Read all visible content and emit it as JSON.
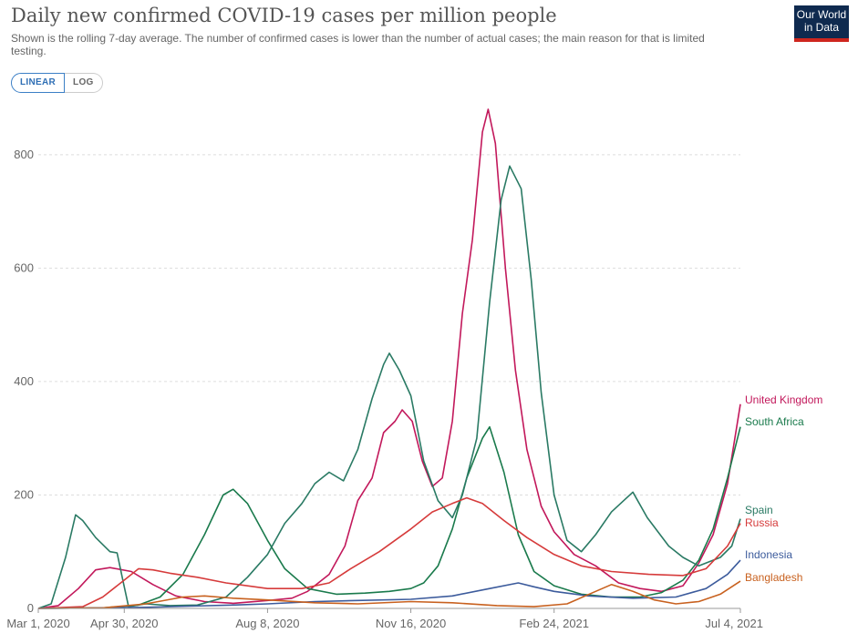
{
  "title": "Daily new confirmed COVID-19 cases per million people",
  "subtitle": "Shown is the rolling 7-day average. The number of confirmed cases is lower than the number of actual cases; the main reason for that is limited testing.",
  "logo": {
    "line1": "Our World",
    "line2": "in Data"
  },
  "scale_toggle": {
    "linear": "LINEAR",
    "log": "LOG",
    "selected": "LINEAR"
  },
  "chart_data": {
    "type": "line",
    "title": "Daily new confirmed COVID-19 cases per million people",
    "subtitle": "Shown is the rolling 7-day average. The number of confirmed cases is lower than the number of actual cases; the main reason for that is limited testing.",
    "x_range": [
      "2020-03-01",
      "2021-07-04"
    ],
    "ylim": [
      0,
      880
    ],
    "grid": "horizontal dashed",
    "legend": "right-end labels",
    "x_ticks": [
      {
        "date": "2020-03-01",
        "label": "Mar 1, 2020"
      },
      {
        "date": "2020-04-30",
        "label": "Apr 30, 2020"
      },
      {
        "date": "2020-08-08",
        "label": "Aug 8, 2020"
      },
      {
        "date": "2020-11-16",
        "label": "Nov 16, 2020"
      },
      {
        "date": "2021-02-24",
        "label": "Feb 24, 2021"
      },
      {
        "date": "2021-07-04",
        "label": "Jul 4, 2021"
      }
    ],
    "y_ticks": [
      {
        "value": 0,
        "label": "0"
      },
      {
        "value": 200,
        "label": "200"
      },
      {
        "value": 400,
        "label": "400"
      },
      {
        "value": 600,
        "label": "600"
      },
      {
        "value": 800,
        "label": "800"
      }
    ],
    "series": [
      {
        "name": "United Kingdom",
        "color": "#c2185b",
        "points": [
          [
            "2020-03-01",
            0
          ],
          [
            "2020-03-15",
            5
          ],
          [
            "2020-03-29",
            35
          ],
          [
            "2020-04-10",
            68
          ],
          [
            "2020-04-20",
            72
          ],
          [
            "2020-05-05",
            65
          ],
          [
            "2020-05-20",
            42
          ],
          [
            "2020-06-05",
            22
          ],
          [
            "2020-06-25",
            12
          ],
          [
            "2020-07-15",
            9
          ],
          [
            "2020-08-08",
            14
          ],
          [
            "2020-08-25",
            18
          ],
          [
            "2020-09-05",
            30
          ],
          [
            "2020-09-20",
            60
          ],
          [
            "2020-10-01",
            110
          ],
          [
            "2020-10-10",
            190
          ],
          [
            "2020-10-20",
            230
          ],
          [
            "2020-10-28",
            310
          ],
          [
            "2020-11-05",
            330
          ],
          [
            "2020-11-10",
            350
          ],
          [
            "2020-11-17",
            330
          ],
          [
            "2020-11-24",
            260
          ],
          [
            "2020-12-01",
            215
          ],
          [
            "2020-12-08",
            230
          ],
          [
            "2020-12-15",
            330
          ],
          [
            "2020-12-22",
            520
          ],
          [
            "2020-12-29",
            650
          ],
          [
            "2021-01-05",
            840
          ],
          [
            "2021-01-09",
            880
          ],
          [
            "2021-01-14",
            820
          ],
          [
            "2021-01-21",
            600
          ],
          [
            "2021-01-28",
            420
          ],
          [
            "2021-02-05",
            280
          ],
          [
            "2021-02-15",
            180
          ],
          [
            "2021-02-24",
            135
          ],
          [
            "2021-03-10",
            95
          ],
          [
            "2021-03-25",
            75
          ],
          [
            "2021-04-10",
            45
          ],
          [
            "2021-04-25",
            35
          ],
          [
            "2021-05-10",
            30
          ],
          [
            "2021-05-25",
            40
          ],
          [
            "2021-06-05",
            80
          ],
          [
            "2021-06-15",
            130
          ],
          [
            "2021-06-25",
            220
          ],
          [
            "2021-07-04",
            360
          ]
        ]
      },
      {
        "name": "South Africa",
        "color": "#1a7a4c",
        "points": [
          [
            "2020-03-01",
            0
          ],
          [
            "2020-04-15",
            1
          ],
          [
            "2020-05-10",
            6
          ],
          [
            "2020-05-25",
            20
          ],
          [
            "2020-06-10",
            60
          ],
          [
            "2020-06-25",
            130
          ],
          [
            "2020-07-08",
            200
          ],
          [
            "2020-07-15",
            210
          ],
          [
            "2020-07-25",
            185
          ],
          [
            "2020-08-08",
            120
          ],
          [
            "2020-08-20",
            70
          ],
          [
            "2020-09-05",
            35
          ],
          [
            "2020-09-25",
            25
          ],
          [
            "2020-10-15",
            27
          ],
          [
            "2020-11-01",
            30
          ],
          [
            "2020-11-16",
            35
          ],
          [
            "2020-11-25",
            45
          ],
          [
            "2020-12-05",
            75
          ],
          [
            "2020-12-15",
            140
          ],
          [
            "2020-12-25",
            230
          ],
          [
            "2021-01-05",
            300
          ],
          [
            "2021-01-10",
            320
          ],
          [
            "2021-01-20",
            240
          ],
          [
            "2021-01-30",
            130
          ],
          [
            "2021-02-10",
            65
          ],
          [
            "2021-02-24",
            40
          ],
          [
            "2021-03-15",
            25
          ],
          [
            "2021-04-05",
            20
          ],
          [
            "2021-04-25",
            20
          ],
          [
            "2021-05-10",
            28
          ],
          [
            "2021-05-25",
            50
          ],
          [
            "2021-06-05",
            85
          ],
          [
            "2021-06-15",
            140
          ],
          [
            "2021-06-25",
            230
          ],
          [
            "2021-07-04",
            320
          ]
        ]
      },
      {
        "name": "Spain",
        "color": "#2a7a64",
        "points": [
          [
            "2020-03-01",
            0
          ],
          [
            "2020-03-10",
            8
          ],
          [
            "2020-03-20",
            90
          ],
          [
            "2020-03-27",
            165
          ],
          [
            "2020-04-01",
            155
          ],
          [
            "2020-04-10",
            125
          ],
          [
            "2020-04-20",
            100
          ],
          [
            "2020-04-25",
            98
          ],
          [
            "2020-04-29",
            50
          ],
          [
            "2020-05-03",
            3
          ],
          [
            "2020-05-15",
            8
          ],
          [
            "2020-06-01",
            5
          ],
          [
            "2020-06-20",
            6
          ],
          [
            "2020-07-10",
            20
          ],
          [
            "2020-07-25",
            55
          ],
          [
            "2020-08-08",
            95
          ],
          [
            "2020-08-20",
            150
          ],
          [
            "2020-09-01",
            185
          ],
          [
            "2020-09-10",
            220
          ],
          [
            "2020-09-20",
            240
          ],
          [
            "2020-09-30",
            225
          ],
          [
            "2020-10-10",
            280
          ],
          [
            "2020-10-20",
            370
          ],
          [
            "2020-10-28",
            430
          ],
          [
            "2020-11-01",
            450
          ],
          [
            "2020-11-08",
            420
          ],
          [
            "2020-11-16",
            375
          ],
          [
            "2020-11-25",
            260
          ],
          [
            "2020-12-05",
            190
          ],
          [
            "2020-12-15",
            160
          ],
          [
            "2020-12-22",
            200
          ],
          [
            "2021-01-01",
            300
          ],
          [
            "2021-01-10",
            540
          ],
          [
            "2021-01-18",
            720
          ],
          [
            "2021-01-24",
            780
          ],
          [
            "2021-02-01",
            740
          ],
          [
            "2021-02-08",
            580
          ],
          [
            "2021-02-15",
            380
          ],
          [
            "2021-02-24",
            200
          ],
          [
            "2021-03-05",
            120
          ],
          [
            "2021-03-15",
            100
          ],
          [
            "2021-03-25",
            130
          ],
          [
            "2021-04-05",
            170
          ],
          [
            "2021-04-20",
            205
          ],
          [
            "2021-04-30",
            160
          ],
          [
            "2021-05-15",
            110
          ],
          [
            "2021-05-25",
            90
          ],
          [
            "2021-06-05",
            75
          ],
          [
            "2021-06-20",
            90
          ],
          [
            "2021-06-28",
            110
          ],
          [
            "2021-07-04",
            158
          ]
        ]
      },
      {
        "name": "Russia",
        "color": "#d63b3b",
        "points": [
          [
            "2020-03-01",
            0
          ],
          [
            "2020-04-01",
            3
          ],
          [
            "2020-04-15",
            20
          ],
          [
            "2020-04-30",
            50
          ],
          [
            "2020-05-10",
            70
          ],
          [
            "2020-05-20",
            68
          ],
          [
            "2020-06-01",
            62
          ],
          [
            "2020-06-20",
            55
          ],
          [
            "2020-07-10",
            45
          ],
          [
            "2020-08-08",
            35
          ],
          [
            "2020-09-01",
            35
          ],
          [
            "2020-09-20",
            45
          ],
          [
            "2020-10-05",
            70
          ],
          [
            "2020-10-25",
            100
          ],
          [
            "2020-11-16",
            140
          ],
          [
            "2020-12-01",
            170
          ],
          [
            "2020-12-15",
            185
          ],
          [
            "2020-12-25",
            195
          ],
          [
            "2021-01-05",
            185
          ],
          [
            "2021-01-20",
            155
          ],
          [
            "2021-02-05",
            125
          ],
          [
            "2021-02-24",
            95
          ],
          [
            "2021-03-15",
            75
          ],
          [
            "2021-04-05",
            65
          ],
          [
            "2021-05-01",
            60
          ],
          [
            "2021-05-25",
            58
          ],
          [
            "2021-06-10",
            70
          ],
          [
            "2021-06-25",
            110
          ],
          [
            "2021-07-04",
            150
          ]
        ]
      },
      {
        "name": "Indonesia",
        "color": "#3c5b9c",
        "points": [
          [
            "2020-03-01",
            0
          ],
          [
            "2020-04-15",
            1
          ],
          [
            "2020-05-15",
            2
          ],
          [
            "2020-06-15",
            4
          ],
          [
            "2020-07-15",
            6
          ],
          [
            "2020-08-08",
            8
          ],
          [
            "2020-09-10",
            12
          ],
          [
            "2020-10-10",
            14
          ],
          [
            "2020-11-16",
            16
          ],
          [
            "2020-12-15",
            22
          ],
          [
            "2021-01-10",
            35
          ],
          [
            "2021-01-30",
            45
          ],
          [
            "2021-02-10",
            38
          ],
          [
            "2021-02-24",
            30
          ],
          [
            "2021-03-20",
            22
          ],
          [
            "2021-04-20",
            18
          ],
          [
            "2021-05-20",
            20
          ],
          [
            "2021-06-10",
            35
          ],
          [
            "2021-06-25",
            60
          ],
          [
            "2021-07-04",
            85
          ]
        ]
      },
      {
        "name": "Bangladesh",
        "color": "#c8611f",
        "points": [
          [
            "2020-03-01",
            0
          ],
          [
            "2020-04-15",
            1
          ],
          [
            "2020-05-15",
            8
          ],
          [
            "2020-06-10",
            20
          ],
          [
            "2020-06-25",
            22
          ],
          [
            "2020-07-15",
            18
          ],
          [
            "2020-08-08",
            15
          ],
          [
            "2020-09-10",
            10
          ],
          [
            "2020-10-10",
            8
          ],
          [
            "2020-11-16",
            12
          ],
          [
            "2020-12-15",
            10
          ],
          [
            "2021-01-15",
            5
          ],
          [
            "2021-02-10",
            3
          ],
          [
            "2021-03-05",
            8
          ],
          [
            "2021-03-25",
            30
          ],
          [
            "2021-04-05",
            42
          ],
          [
            "2021-04-20",
            30
          ],
          [
            "2021-05-05",
            15
          ],
          [
            "2021-05-20",
            8
          ],
          [
            "2021-06-05",
            12
          ],
          [
            "2021-06-20",
            25
          ],
          [
            "2021-07-04",
            48
          ]
        ]
      }
    ]
  }
}
